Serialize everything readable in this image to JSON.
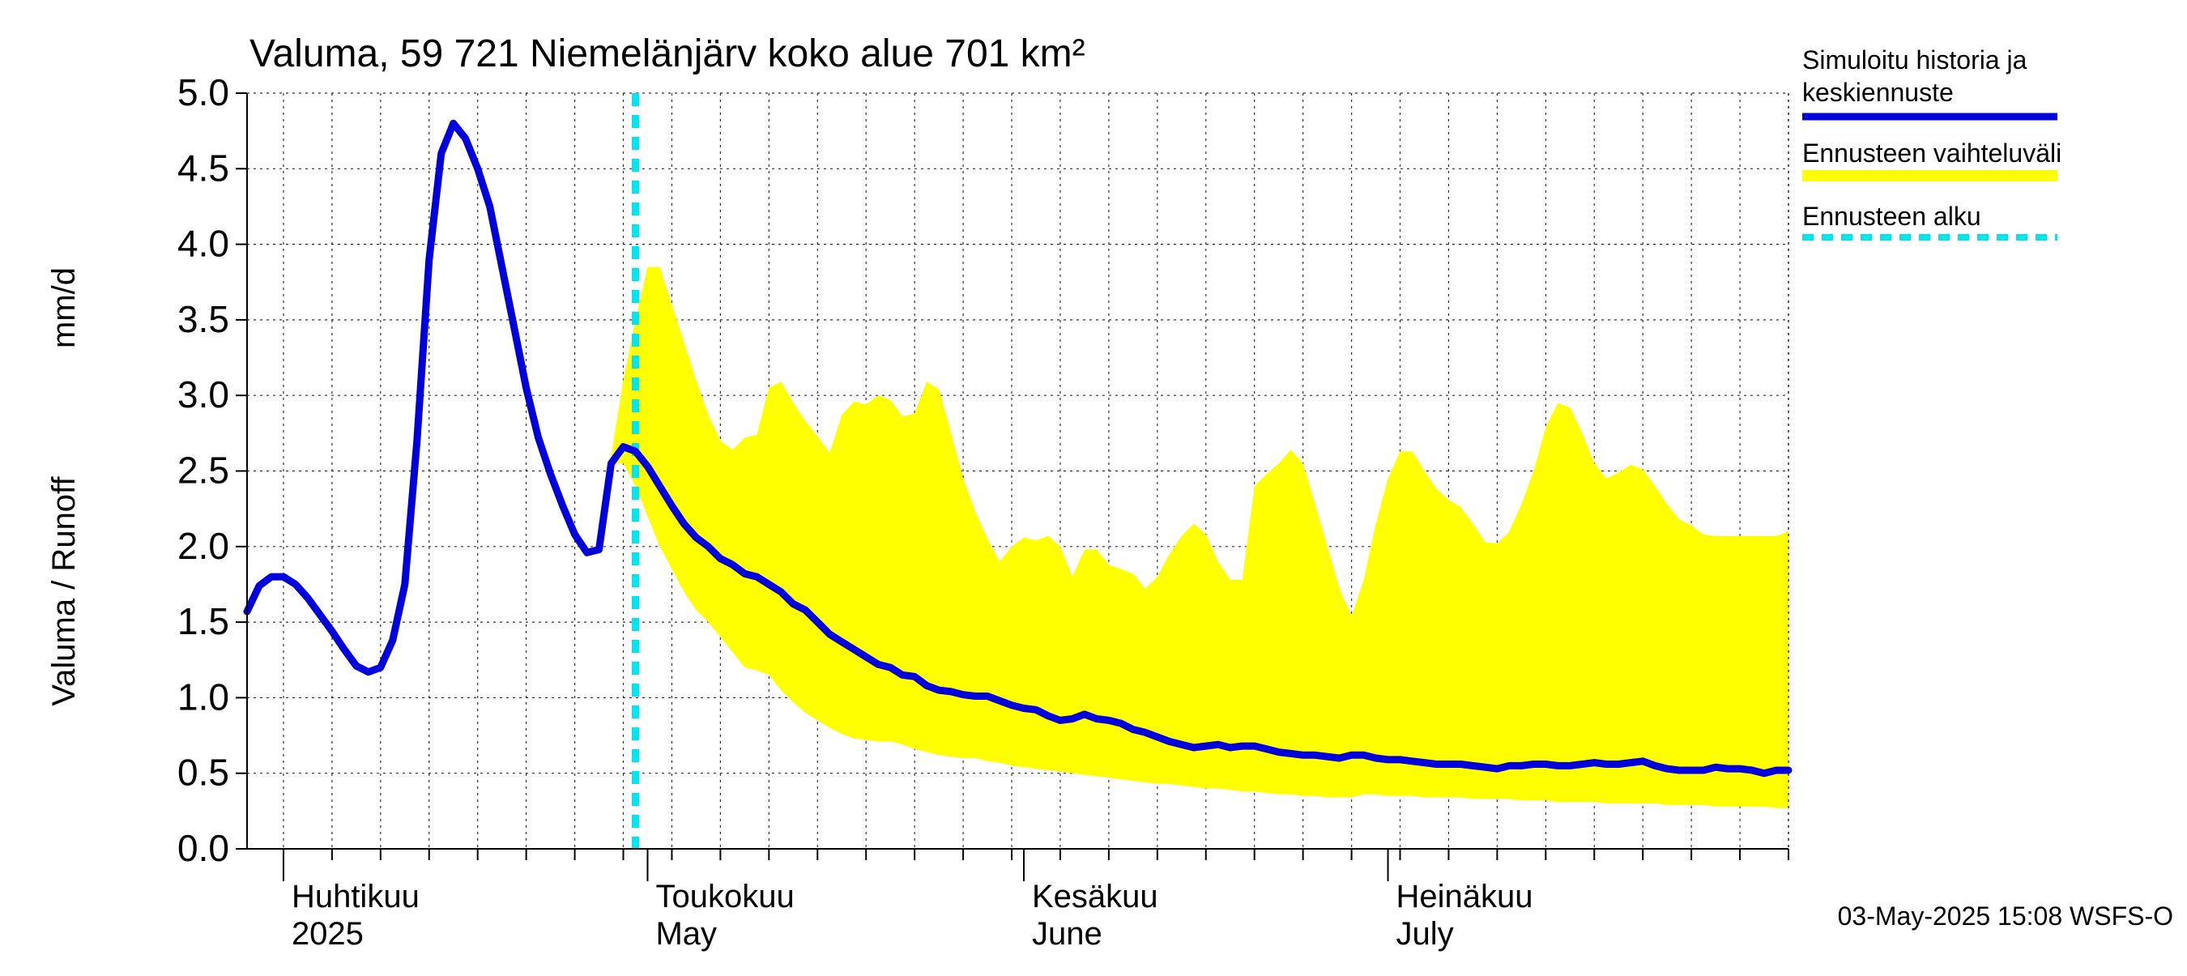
{
  "chart_data": {
    "type": "area",
    "title": "Valuma, 59 721 Niemelänjärv koko alue 701 km²",
    "ylabel_left": "Valuma / Runoff",
    "ylabel_right": "mm/d",
    "ylim": [
      0.0,
      5.0
    ],
    "yticks": [
      "0.0",
      "0.5",
      "1.0",
      "1.5",
      "2.0",
      "2.5",
      "3.0",
      "3.5",
      "4.0",
      "4.5",
      "5.0"
    ],
    "xlim_days": [
      0,
      127
    ],
    "x_axis_origin": "2025-03-29",
    "month_labels": [
      {
        "day": 3,
        "fi": "Huhtikuu",
        "en": "2025"
      },
      {
        "day": 33,
        "fi": "Toukokuu",
        "en": "May"
      },
      {
        "day": 64,
        "fi": "Kesäkuu",
        "en": "June"
      },
      {
        "day": 94,
        "fi": "Heinäkuu",
        "en": "July"
      }
    ],
    "forecast_start_day": 32,
    "series": [
      {
        "name": "Simuloitu historia ja keskiennuste",
        "color": "#0000dd",
        "x": [
          0,
          1,
          2,
          3,
          4,
          5,
          6,
          7,
          8,
          9,
          10,
          11,
          12,
          13,
          14,
          15,
          16,
          17,
          18,
          19,
          20,
          21,
          22,
          23,
          24,
          25,
          26,
          27,
          28,
          29,
          30,
          31,
          32,
          33,
          34,
          35,
          36,
          37,
          38,
          39,
          40,
          41,
          42,
          43,
          44,
          45,
          46,
          47,
          48,
          49,
          50,
          51,
          52,
          53,
          54,
          55,
          56,
          57,
          58,
          59,
          60,
          61,
          62,
          63,
          64,
          65,
          66,
          67,
          68,
          69,
          70,
          71,
          72,
          73,
          74,
          75,
          76,
          77,
          78,
          79,
          80,
          81,
          82,
          83,
          84,
          85,
          86,
          87,
          88,
          89,
          90,
          91,
          92,
          93,
          94,
          95,
          96,
          97,
          98,
          99,
          100,
          101,
          102,
          103,
          104,
          105,
          106,
          107,
          108,
          109,
          110,
          111,
          112,
          113,
          114,
          115,
          116,
          117,
          118,
          119,
          120,
          121,
          122,
          123,
          124,
          125,
          126,
          127
        ],
        "values": [
          1.57,
          1.74,
          1.8,
          1.8,
          1.75,
          1.66,
          1.55,
          1.44,
          1.32,
          1.21,
          1.17,
          1.2,
          1.38,
          1.75,
          2.7,
          3.9,
          4.6,
          4.8,
          4.7,
          4.5,
          4.25,
          3.85,
          3.45,
          3.05,
          2.72,
          2.48,
          2.27,
          2.08,
          1.96,
          1.98,
          2.55,
          2.66,
          2.63,
          2.53,
          2.4,
          2.27,
          2.15,
          2.06,
          2.0,
          1.92,
          1.88,
          1.82,
          1.8,
          1.75,
          1.7,
          1.62,
          1.58,
          1.5,
          1.42,
          1.37,
          1.32,
          1.27,
          1.22,
          1.2,
          1.15,
          1.14,
          1.08,
          1.05,
          1.04,
          1.02,
          1.01,
          1.01,
          0.98,
          0.95,
          0.93,
          0.92,
          0.88,
          0.85,
          0.86,
          0.89,
          0.86,
          0.85,
          0.83,
          0.79,
          0.77,
          0.74,
          0.71,
          0.69,
          0.67,
          0.68,
          0.69,
          0.67,
          0.68,
          0.68,
          0.66,
          0.64,
          0.63,
          0.62,
          0.62,
          0.61,
          0.6,
          0.62,
          0.62,
          0.6,
          0.59,
          0.59,
          0.58,
          0.57,
          0.56,
          0.56,
          0.56,
          0.55,
          0.54,
          0.53,
          0.55,
          0.55,
          0.56,
          0.56,
          0.55,
          0.55,
          0.56,
          0.57,
          0.56,
          0.56,
          0.57,
          0.58,
          0.55,
          0.53,
          0.52,
          0.52,
          0.52,
          0.54,
          0.53,
          0.53,
          0.52,
          0.5,
          0.52,
          0.52
        ]
      },
      {
        "name": "Ennusteen vaihteluväli",
        "color": "#ffff00",
        "x": [
          30,
          31,
          32,
          33,
          34,
          35,
          36,
          37,
          38,
          39,
          40,
          41,
          42,
          43,
          44,
          45,
          46,
          47,
          48,
          49,
          50,
          51,
          52,
          53,
          54,
          55,
          56,
          57,
          58,
          59,
          60,
          61,
          62,
          63,
          64,
          65,
          66,
          67,
          68,
          69,
          70,
          71,
          72,
          73,
          74,
          75,
          76,
          77,
          78,
          79,
          80,
          81,
          82,
          83,
          84,
          85,
          86,
          87,
          88,
          89,
          90,
          91,
          92,
          93,
          94,
          95,
          96,
          97,
          98,
          99,
          100,
          101,
          102,
          103,
          104,
          105,
          106,
          107,
          108,
          109,
          110,
          111,
          112,
          113,
          114,
          115,
          116,
          117,
          118,
          119,
          120,
          121,
          122,
          123,
          124,
          125,
          126,
          127
        ],
        "upper": [
          2.6,
          3.1,
          3.5,
          3.85,
          3.85,
          3.6,
          3.35,
          3.1,
          2.87,
          2.7,
          2.64,
          2.72,
          2.74,
          3.05,
          3.09,
          2.95,
          2.83,
          2.73,
          2.62,
          2.87,
          2.96,
          2.94,
          3.0,
          2.97,
          2.86,
          2.88,
          3.09,
          3.04,
          2.75,
          2.45,
          2.23,
          2.05,
          1.9,
          2.0,
          2.06,
          2.04,
          2.07,
          2.0,
          1.8,
          1.98,
          1.98,
          1.88,
          1.85,
          1.82,
          1.72,
          1.8,
          1.95,
          2.07,
          2.15,
          2.08,
          1.9,
          1.78,
          1.78,
          2.4,
          2.48,
          2.55,
          2.64,
          2.55,
          2.28,
          2.0,
          1.72,
          1.54,
          1.78,
          2.15,
          2.45,
          2.63,
          2.63,
          2.5,
          2.38,
          2.31,
          2.26,
          2.15,
          2.03,
          2.02,
          2.1,
          2.28,
          2.5,
          2.79,
          2.95,
          2.92,
          2.75,
          2.55,
          2.45,
          2.49,
          2.54,
          2.51,
          2.4,
          2.28,
          2.18,
          2.14,
          2.08,
          2.07,
          2.07,
          2.07,
          2.07,
          2.07,
          2.07,
          2.1
        ],
        "lower": [
          2.55,
          2.55,
          2.4,
          2.2,
          2.0,
          1.85,
          1.7,
          1.58,
          1.5,
          1.4,
          1.3,
          1.2,
          1.18,
          1.15,
          1.05,
          0.97,
          0.9,
          0.85,
          0.8,
          0.76,
          0.73,
          0.72,
          0.71,
          0.71,
          0.69,
          0.66,
          0.64,
          0.62,
          0.61,
          0.6,
          0.6,
          0.58,
          0.57,
          0.55,
          0.54,
          0.53,
          0.52,
          0.51,
          0.5,
          0.49,
          0.48,
          0.47,
          0.46,
          0.45,
          0.44,
          0.43,
          0.43,
          0.42,
          0.41,
          0.4,
          0.4,
          0.39,
          0.38,
          0.38,
          0.37,
          0.36,
          0.36,
          0.35,
          0.35,
          0.34,
          0.34,
          0.34,
          0.36,
          0.36,
          0.35,
          0.35,
          0.35,
          0.34,
          0.34,
          0.34,
          0.34,
          0.33,
          0.33,
          0.33,
          0.33,
          0.32,
          0.32,
          0.32,
          0.31,
          0.31,
          0.31,
          0.31,
          0.3,
          0.3,
          0.3,
          0.3,
          0.3,
          0.29,
          0.29,
          0.29,
          0.29,
          0.28,
          0.28,
          0.28,
          0.28,
          0.28,
          0.27,
          0.27
        ]
      }
    ],
    "legend": {
      "placement": "right",
      "entries": [
        {
          "label_line1": "Simuloitu historia ja",
          "label_line2": "keskiennuste",
          "style": "line",
          "color": "#0000dd"
        },
        {
          "label_line1": "Ennusteen vaihteluväli",
          "label_line2": "",
          "style": "band",
          "color": "#ffff00"
        },
        {
          "label_line1": "Ennusteen alku",
          "label_line2": "",
          "style": "dashed",
          "color": "#00e5ee"
        }
      ]
    },
    "footer": "03-May-2025 15:08 WSFS-O",
    "grid": true
  }
}
